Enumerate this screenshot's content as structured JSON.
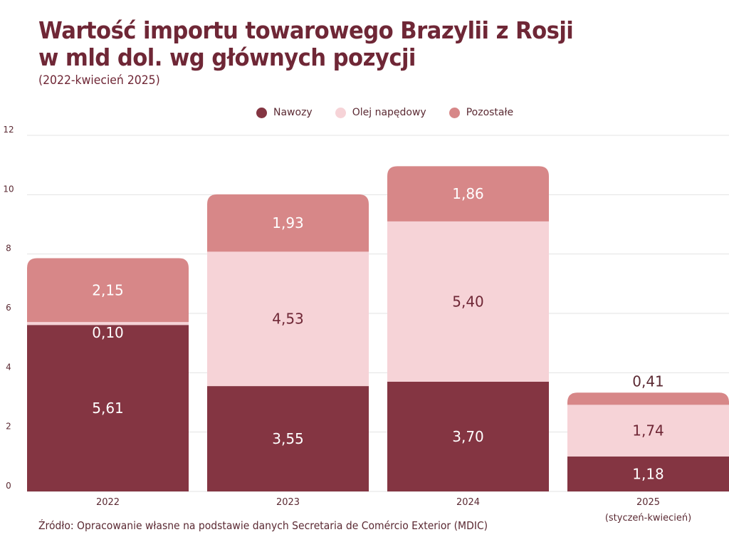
{
  "chart_data": {
    "type": "bar",
    "stacked": true,
    "title": "Wartość importu towarowego Brazylii z Rosji w mld dol. wg głównych pozycji",
    "title_lines": [
      "Wartość importu towarowego Brazylii z Rosji",
      "w mld dol. wg głównych pozycji"
    ],
    "subtitle": "(2022-kwiecień 2025)",
    "categories": [
      "2022",
      "2023",
      "2024",
      "2025"
    ],
    "category_sublabels": [
      "",
      "",
      "",
      "(styczeń-kwiecień)"
    ],
    "series": [
      {
        "name": "Nawozy",
        "color": "#843542",
        "label_color": "#ffffff",
        "values": [
          5.61,
          3.55,
          3.7,
          1.18
        ],
        "labels": [
          "5,61",
          "3,55",
          "3,70",
          "1,18"
        ]
      },
      {
        "name": "Olej napędowy",
        "color": "#f6d3d7",
        "label_color": "#6f2736",
        "values": [
          0.1,
          4.53,
          5.4,
          1.74
        ],
        "labels": [
          "0,10",
          "4,53",
          "5,40",
          "1,74"
        ]
      },
      {
        "name": "Pozostałe",
        "color": "#d78788",
        "label_color": "#ffffff",
        "values": [
          2.15,
          1.93,
          1.86,
          0.41
        ],
        "labels": [
          "2,15",
          "1,93",
          "1,86",
          "0,41"
        ]
      }
    ],
    "yticks": [
      "0",
      "2",
      "4",
      "6",
      "8",
      "10",
      "12"
    ],
    "ylim": [
      0,
      12
    ],
    "xlabel": "",
    "ylabel": "",
    "grid": true,
    "legend_position": "top-center"
  },
  "source": "Źródło: Opracowanie własne na podstawie danych Secretaria de Comércio Exterior (MDIC)",
  "colors": {
    "title": "#6f2736",
    "text": "#5b2a33",
    "grid": "#e3e3e3"
  }
}
